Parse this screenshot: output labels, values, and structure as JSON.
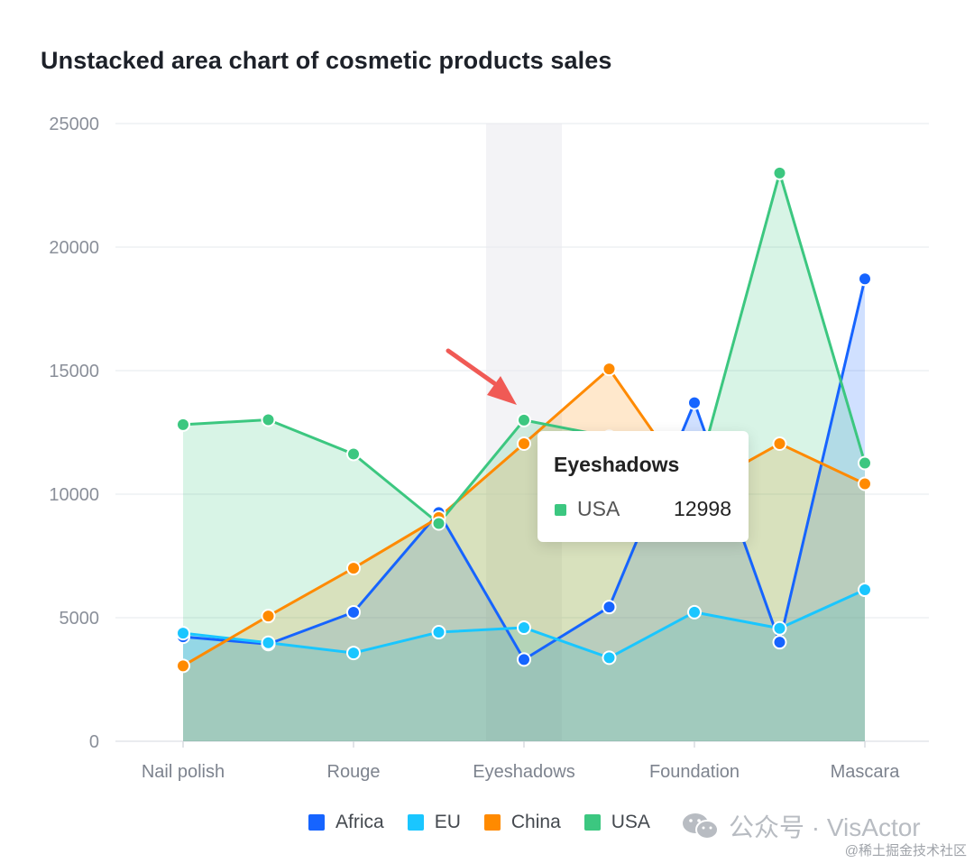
{
  "chart_data": {
    "type": "area",
    "title": "Unstacked area chart of cosmetic products sales",
    "x": [
      "Nail polish",
      "",
      "Rouge",
      "",
      "Eyeshadows",
      "",
      "Foundation",
      "",
      "Mascara"
    ],
    "x_tick_labels": [
      "Nail polish",
      "Rouge",
      "Eyeshadows",
      "Foundation",
      "Mascara"
    ],
    "ylim": [
      0,
      25000
    ],
    "y_ticks": [
      0,
      5000,
      10000,
      15000,
      20000,
      25000
    ],
    "grid": true,
    "legend_position": "bottom",
    "series": [
      {
        "name": "Africa",
        "color": "#1664ff",
        "values": [
          4229,
          3932,
          5221,
          9256,
          3308,
          5432,
          13701,
          4008,
          18712
        ]
      },
      {
        "name": "EU",
        "color": "#1ac6ff",
        "values": [
          4376,
          3987,
          3574,
          4414,
          4597,
          3380,
          5224,
          4570,
          6130
        ]
      },
      {
        "name": "China",
        "color": "#ff8a00",
        "values": [
          3054,
          5067,
          7004,
          9054,
          12043,
          15067,
          10119,
          12043,
          10419
        ]
      },
      {
        "name": "USA",
        "color": "#3cc780",
        "values": [
          12814,
          13012,
          11624,
          8814,
          12998,
          12321,
          10342,
          22998,
          11261
        ]
      }
    ],
    "highlight_category_index": 4,
    "tooltip": {
      "title": "Eyeshadows",
      "series": "USA",
      "value": "12998",
      "color": "#3cc780"
    }
  },
  "watermark": {
    "text": "公众号 · VisActor"
  },
  "credit": {
    "text": "@稀土掘金技术社区"
  }
}
